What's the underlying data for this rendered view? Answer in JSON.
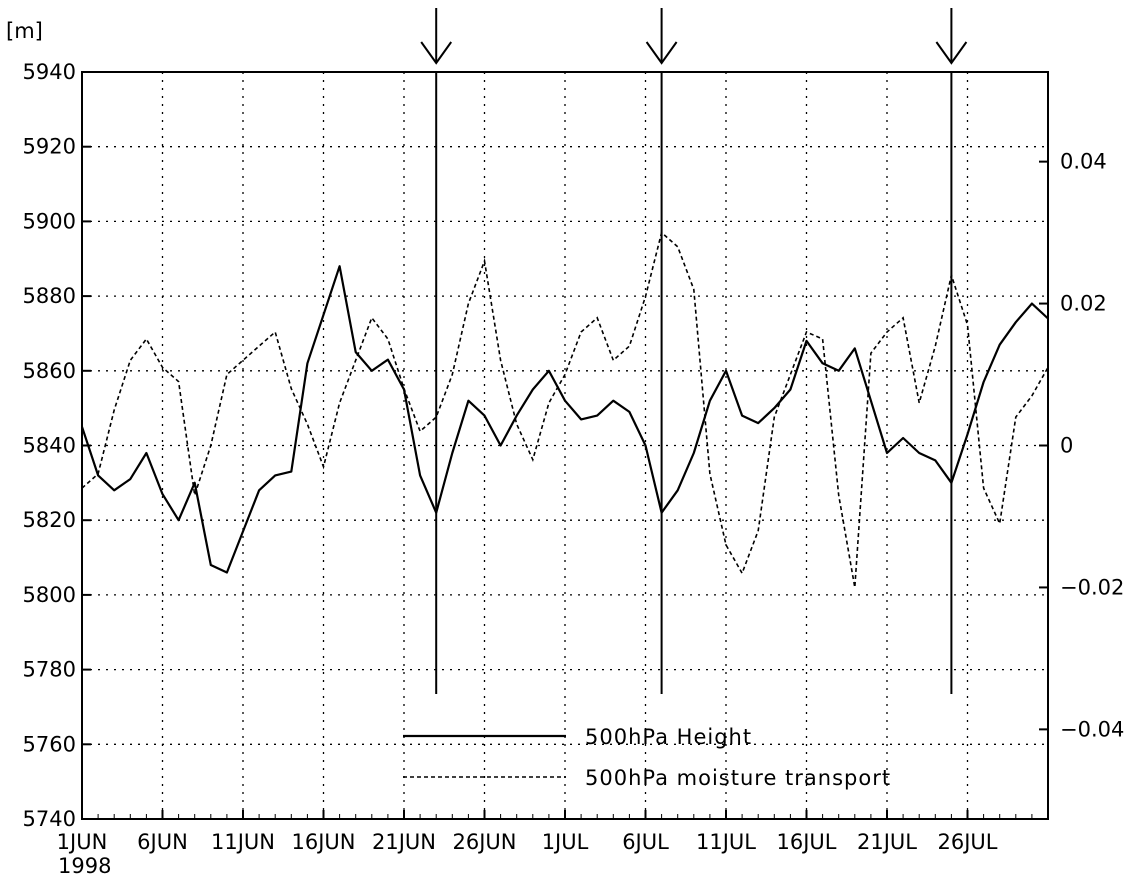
{
  "chart_data": {
    "type": "line",
    "title": "",
    "y_unit_label": "[m]",
    "date_label": "1998",
    "x_range": [
      "1998-06-01",
      "1998-07-31"
    ],
    "x_ticks": [
      {
        "date": "1998-06-01",
        "label": "1JUN"
      },
      {
        "date": "1998-06-06",
        "label": "6JUN"
      },
      {
        "date": "1998-06-11",
        "label": "11JUN"
      },
      {
        "date": "1998-06-16",
        "label": "16JUN"
      },
      {
        "date": "1998-06-21",
        "label": "21JUN"
      },
      {
        "date": "1998-06-26",
        "label": "26JUN"
      },
      {
        "date": "1998-07-01",
        "label": "1JUL"
      },
      {
        "date": "1998-07-06",
        "label": "6JUL"
      },
      {
        "date": "1998-07-11",
        "label": "11JUL"
      },
      {
        "date": "1998-07-16",
        "label": "16JUL"
      },
      {
        "date": "1998-07-21",
        "label": "21JUL"
      },
      {
        "date": "1998-07-26",
        "label": "26JUL"
      }
    ],
    "y_left": {
      "range": [
        5740,
        5940
      ],
      "ticks": [
        5740,
        5760,
        5780,
        5800,
        5820,
        5840,
        5860,
        5880,
        5900,
        5920,
        5940
      ],
      "tick_labels": [
        "5740",
        "5760",
        "5780",
        "5800",
        "5820",
        "5840",
        "5860",
        "5880",
        "5900",
        "5920",
        "5940"
      ]
    },
    "y_right": {
      "range": [
        -0.05263,
        0.05263
      ],
      "ticks": [
        -0.04,
        -0.02,
        0,
        0.02,
        0.04
      ],
      "tick_labels": [
        "−0.04",
        "−0.02",
        "0",
        "0.02",
        "0.04"
      ]
    },
    "grid": true,
    "legend": {
      "placement": "bottom-center"
    },
    "markers": [
      "1998-06-23",
      "1998-07-07",
      "1998-07-25"
    ],
    "series": [
      {
        "name": "500hPa Height",
        "axis": "left",
        "style": "solid",
        "x": [
          "1998-06-01",
          "1998-06-02",
          "1998-06-03",
          "1998-06-04",
          "1998-06-05",
          "1998-06-06",
          "1998-06-07",
          "1998-06-08",
          "1998-06-09",
          "1998-06-10",
          "1998-06-11",
          "1998-06-12",
          "1998-06-13",
          "1998-06-14",
          "1998-06-15",
          "1998-06-16",
          "1998-06-17",
          "1998-06-18",
          "1998-06-19",
          "1998-06-20",
          "1998-06-21",
          "1998-06-22",
          "1998-06-23",
          "1998-06-24",
          "1998-06-25",
          "1998-06-26",
          "1998-06-27",
          "1998-06-28",
          "1998-06-29",
          "1998-06-30",
          "1998-07-01",
          "1998-07-02",
          "1998-07-03",
          "1998-07-04",
          "1998-07-05",
          "1998-07-06",
          "1998-07-07",
          "1998-07-08",
          "1998-07-09",
          "1998-07-10",
          "1998-07-11",
          "1998-07-12",
          "1998-07-13",
          "1998-07-14",
          "1998-07-15",
          "1998-07-16",
          "1998-07-17",
          "1998-07-18",
          "1998-07-19",
          "1998-07-20",
          "1998-07-21",
          "1998-07-22",
          "1998-07-23",
          "1998-07-24",
          "1998-07-25",
          "1998-07-26",
          "1998-07-27",
          "1998-07-28",
          "1998-07-29",
          "1998-07-30",
          "1998-07-31"
        ],
        "values": [
          5845,
          5832,
          5828,
          5831,
          5838,
          5827,
          5820,
          5830,
          5808,
          5806,
          5817,
          5828,
          5832,
          5833,
          5862,
          5875,
          5888,
          5865,
          5860,
          5863,
          5855,
          5832,
          5822,
          5838,
          5852,
          5848,
          5840,
          5848,
          5855,
          5860,
          5852,
          5847,
          5848,
          5852,
          5849,
          5840,
          5822,
          5828,
          5838,
          5852,
          5860,
          5848,
          5846,
          5850,
          5855,
          5868,
          5862,
          5860,
          5866,
          5852,
          5838,
          5842,
          5838,
          5836,
          5830,
          5843,
          5857,
          5867,
          5873,
          5878,
          5874
        ]
      },
      {
        "name": "500hPa moisture transport",
        "axis": "right",
        "style": "dashed",
        "x": [
          "1998-06-01",
          "1998-06-02",
          "1998-06-03",
          "1998-06-04",
          "1998-06-05",
          "1998-06-06",
          "1998-06-07",
          "1998-06-08",
          "1998-06-09",
          "1998-06-10",
          "1998-06-11",
          "1998-06-12",
          "1998-06-13",
          "1998-06-14",
          "1998-06-15",
          "1998-06-16",
          "1998-06-17",
          "1998-06-18",
          "1998-06-19",
          "1998-06-20",
          "1998-06-21",
          "1998-06-22",
          "1998-06-23",
          "1998-06-24",
          "1998-06-25",
          "1998-06-26",
          "1998-06-27",
          "1998-06-28",
          "1998-06-29",
          "1998-06-30",
          "1998-07-01",
          "1998-07-02",
          "1998-07-03",
          "1998-07-04",
          "1998-07-05",
          "1998-07-06",
          "1998-07-07",
          "1998-07-08",
          "1998-07-09",
          "1998-07-10",
          "1998-07-11",
          "1998-07-12",
          "1998-07-13",
          "1998-07-14",
          "1998-07-15",
          "1998-07-16",
          "1998-07-17",
          "1998-07-18",
          "1998-07-19",
          "1998-07-20",
          "1998-07-21",
          "1998-07-22",
          "1998-07-23",
          "1998-07-24",
          "1998-07-25",
          "1998-07-26",
          "1998-07-27",
          "1998-07-28",
          "1998-07-29",
          "1998-07-30",
          "1998-07-31"
        ],
        "values": [
          -0.006,
          -0.004,
          0.005,
          0.012,
          0.015,
          0.011,
          0.009,
          -0.007,
          0.0,
          0.01,
          0.012,
          0.014,
          0.016,
          0.008,
          0.003,
          -0.003,
          0.006,
          0.012,
          0.018,
          0.015,
          0.008,
          0.002,
          0.004,
          0.01,
          0.02,
          0.026,
          0.012,
          0.003,
          -0.002,
          0.006,
          0.01,
          0.016,
          0.018,
          0.012,
          0.014,
          0.021,
          0.03,
          0.028,
          0.022,
          -0.004,
          -0.014,
          -0.018,
          -0.012,
          0.004,
          0.01,
          0.016,
          0.015,
          -0.007,
          -0.02,
          0.013,
          0.016,
          0.018,
          0.006,
          0.014,
          0.024,
          0.017,
          -0.006,
          -0.011,
          0.004,
          0.007,
          0.011
        ]
      }
    ]
  }
}
